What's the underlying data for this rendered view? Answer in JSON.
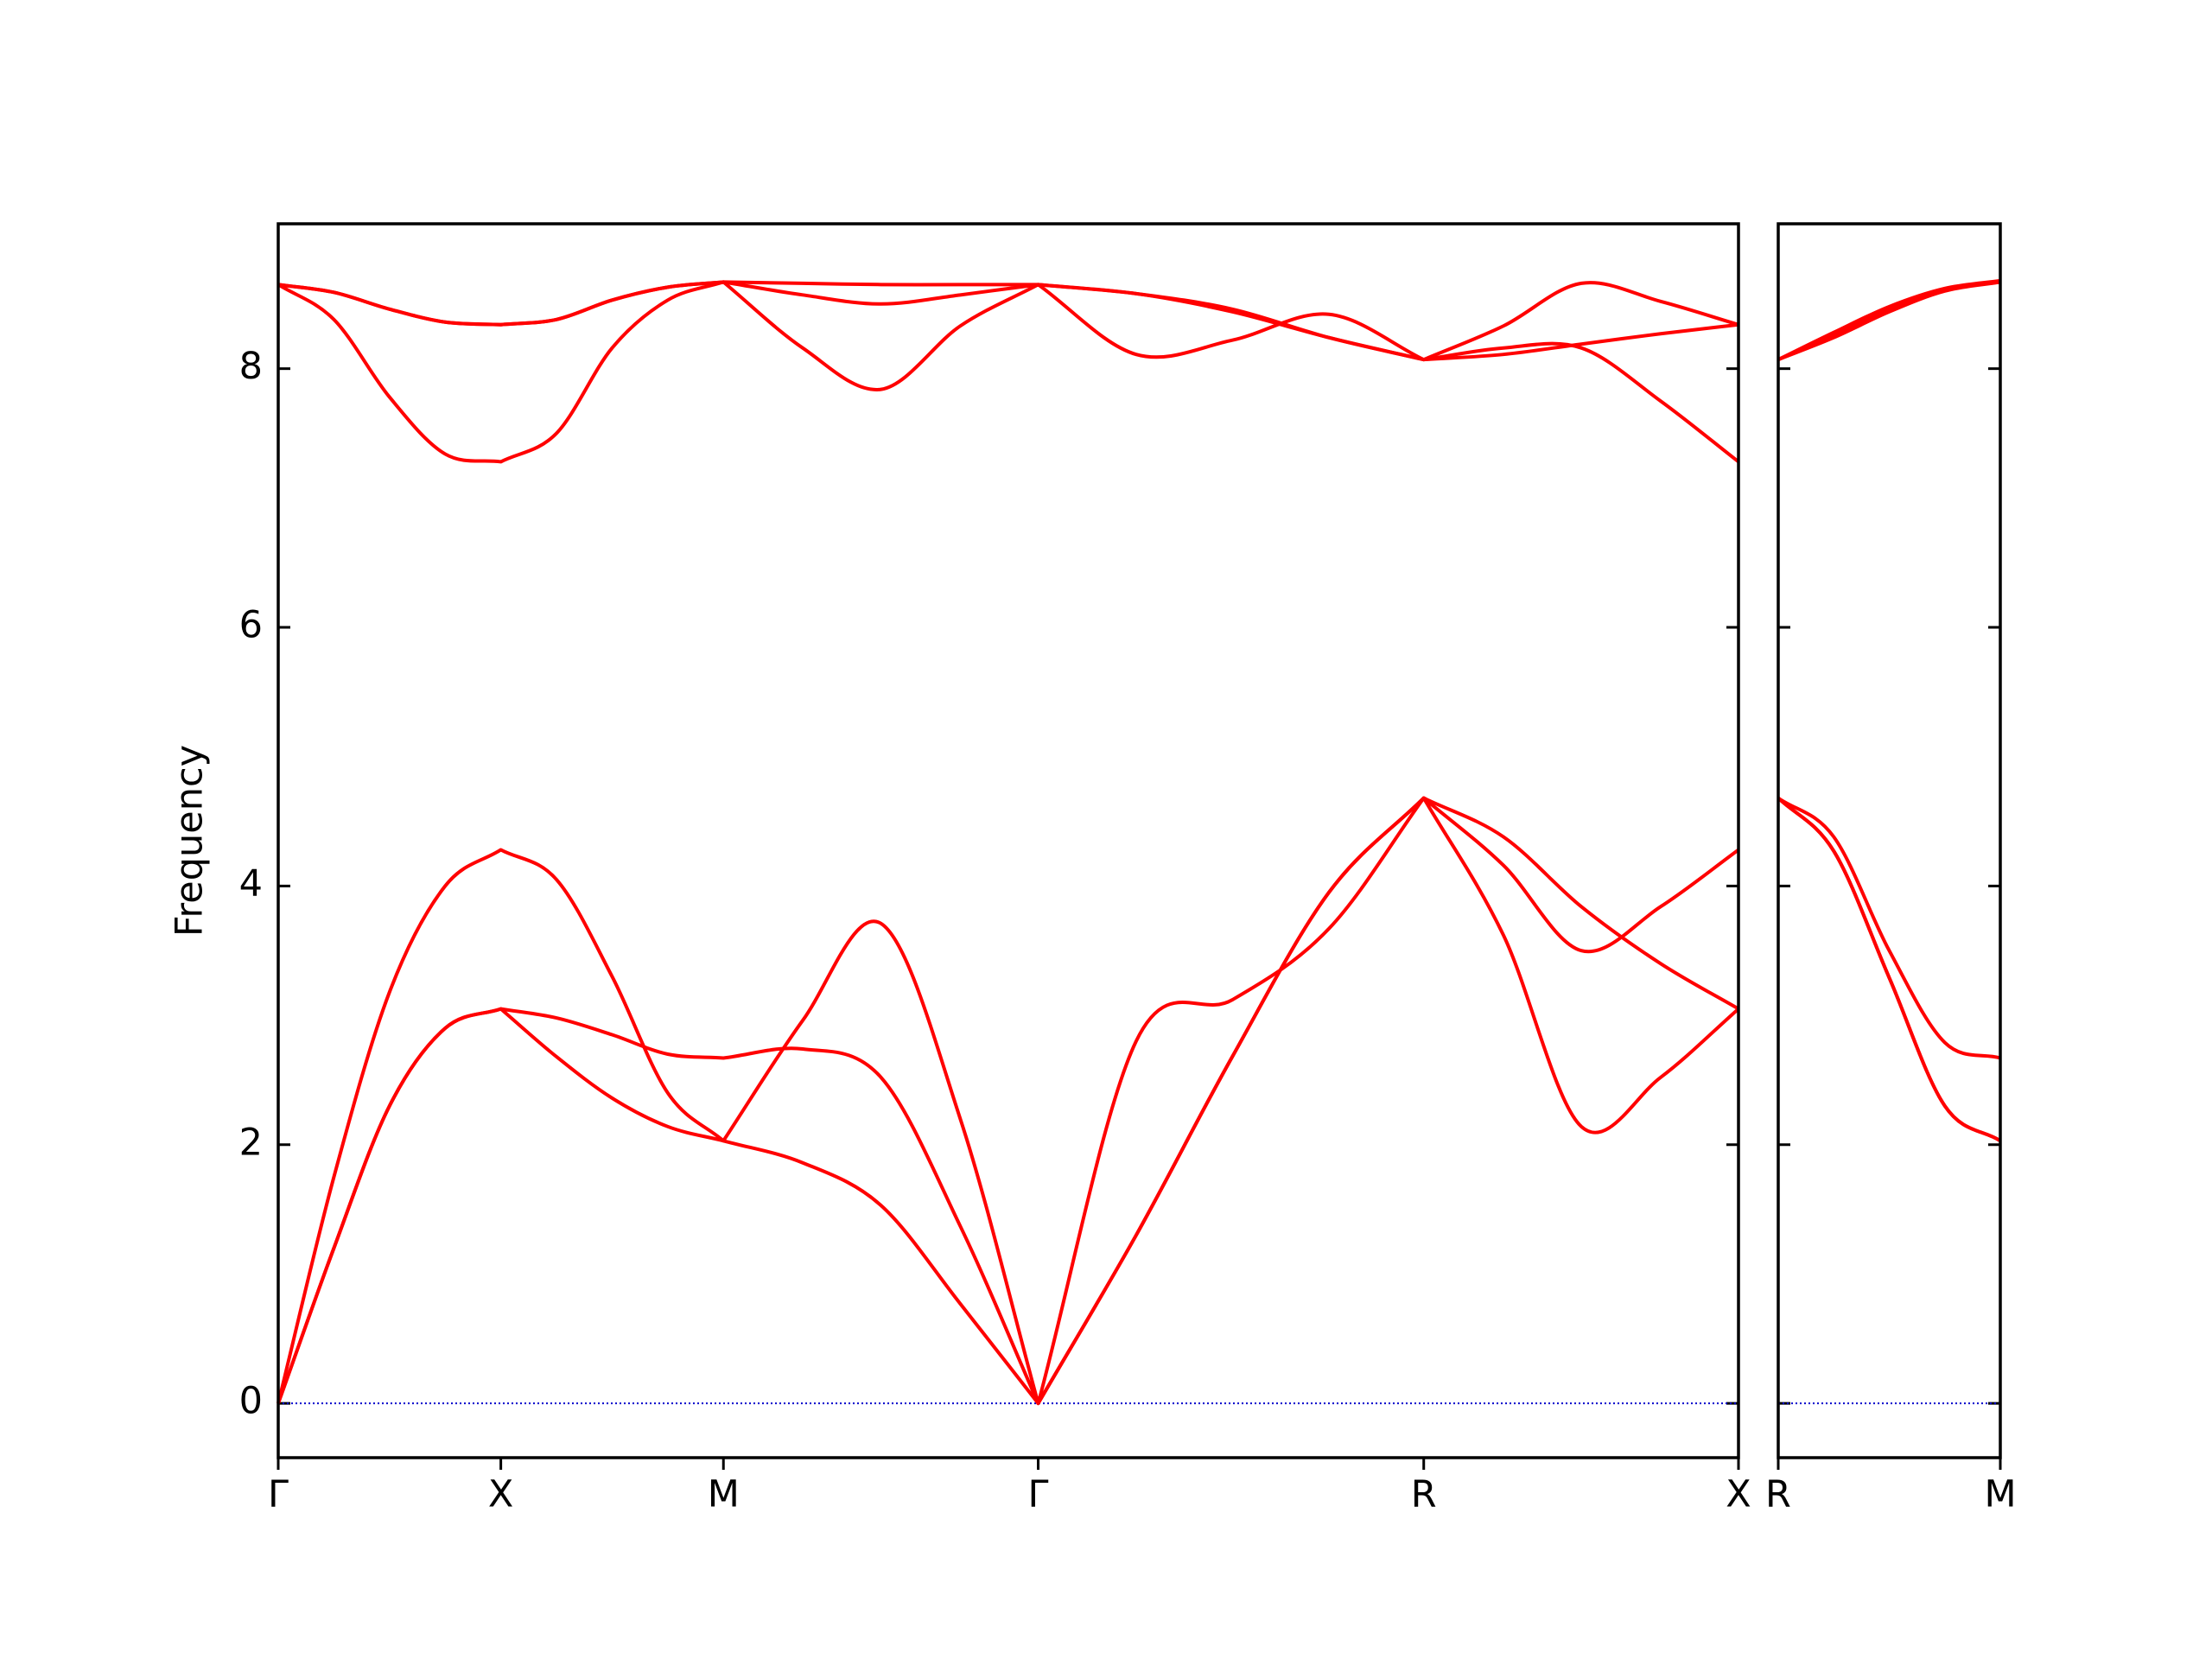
{
  "chart_data": [
    {
      "type": "line",
      "ylabel": "Frequency",
      "x": [
        0,
        0.125,
        0.25,
        0.375,
        0.5,
        0.625,
        0.75,
        0.875,
        1.0,
        1.178,
        1.354,
        1.532,
        1.707,
        1.927,
        2.143,
        2.36,
        2.573,
        2.752,
        2.927,
        3.105,
        3.28
      ],
      "xlim": [
        0,
        3.28
      ],
      "ylim": [
        -0.42,
        9.12
      ],
      "xticks": [
        {
          "value": 0,
          "label": "Γ"
        },
        {
          "value": 0.5,
          "label": "X"
        },
        {
          "value": 1.0,
          "label": "M"
        },
        {
          "value": 1.707,
          "label": "Γ"
        },
        {
          "value": 2.573,
          "label": "R"
        },
        {
          "value": 3.28,
          "label": "X"
        }
      ],
      "yticks": [
        0,
        2,
        4,
        6,
        8
      ],
      "show_ytick_labels": true,
      "hline": 0,
      "hline_color": "#0000cc",
      "series": [
        {
          "color": "#ff0000",
          "values": [
            0,
            1.2,
            2.3,
            2.9,
            3.05,
            2.68,
            2.36,
            2.14,
            2.03,
            1.86,
            1.53,
            0.77,
            0,
            1.3,
            2.68,
            3.95,
            4.68,
            4.38,
            3.84,
            3.4,
            3.05
          ]
        },
        {
          "color": "#ff0000",
          "values": [
            0,
            1.2,
            2.3,
            2.9,
            3.05,
            2.98,
            2.85,
            2.7,
            2.67,
            2.74,
            2.52,
            1.37,
            0,
            1.3,
            2.68,
            3.95,
            4.68,
            3.62,
            2.14,
            2.52,
            3.05
          ]
        },
        {
          "color": "#ff0000",
          "values": [
            0,
            1.75,
            3.18,
            4.0,
            4.28,
            4.05,
            3.3,
            2.4,
            2.03,
            2.96,
            3.71,
            2.2,
            0,
            2.8,
            3.12,
            3.67,
            4.68,
            4.16,
            3.5,
            3.84,
            4.28
          ]
        },
        {
          "color": "#ff0000",
          "values": [
            8.65,
            8.38,
            7.78,
            7.34,
            7.28,
            7.5,
            8.16,
            8.53,
            8.67,
            8.16,
            7.84,
            8.33,
            8.65,
            8.11,
            8.22,
            8.42,
            8.07,
            8.16,
            8.16,
            7.75,
            7.28
          ]
        },
        {
          "color": "#ff0000",
          "values": [
            8.65,
            8.59,
            8.46,
            8.36,
            8.34,
            8.38,
            8.53,
            8.63,
            8.67,
            8.57,
            8.5,
            8.57,
            8.65,
            8.58,
            8.44,
            8.24,
            8.07,
            8.33,
            8.66,
            8.52,
            8.34
          ]
        },
        {
          "color": "#ff0000",
          "values": [
            8.65,
            8.59,
            8.46,
            8.36,
            8.34,
            8.38,
            8.53,
            8.63,
            8.67,
            8.66,
            8.65,
            8.65,
            8.65,
            8.58,
            8.46,
            8.24,
            8.07,
            8.11,
            8.19,
            8.27,
            8.34
          ]
        }
      ]
    },
    {
      "type": "line",
      "x": [
        0,
        0.125,
        0.25,
        0.375,
        0.5
      ],
      "xlim": [
        0,
        0.5
      ],
      "ylim": [
        -0.42,
        9.12
      ],
      "xticks": [
        {
          "value": 0,
          "label": "R"
        },
        {
          "value": 0.5,
          "label": "M"
        }
      ],
      "yticks": [
        0,
        2,
        4,
        6,
        8
      ],
      "show_ytick_labels": false,
      "hline": 0,
      "hline_color": "#0000cc",
      "series": [
        {
          "color": "#ff0000",
          "values": [
            4.68,
            4.27,
            3.29,
            2.3,
            2.03
          ]
        },
        {
          "color": "#ff0000",
          "values": [
            4.68,
            4.27,
            3.29,
            2.3,
            2.03
          ]
        },
        {
          "color": "#ff0000",
          "values": [
            4.68,
            4.38,
            3.5,
            2.79,
            2.67
          ]
        },
        {
          "color": "#ff0000",
          "values": [
            8.07,
            8.24,
            8.44,
            8.6,
            8.67
          ]
        },
        {
          "color": "#ff0000",
          "values": [
            8.07,
            8.26,
            8.46,
            8.61,
            8.67
          ]
        },
        {
          "color": "#ff0000",
          "values": [
            8.07,
            8.28,
            8.48,
            8.62,
            8.68
          ]
        }
      ]
    }
  ]
}
